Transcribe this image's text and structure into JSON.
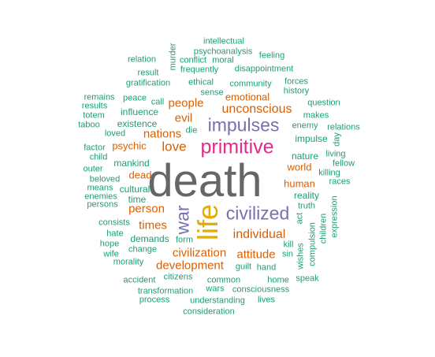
{
  "colors": {
    "teal": "#1b9e77",
    "orange": "#d95f02",
    "purple": "#7570b3",
    "magenta": "#e7298a",
    "gold": "#e6ab02",
    "gray": "#666666"
  },
  "words": [
    {
      "text": "death",
      "color": "gray"
    },
    {
      "text": "life",
      "color": "gold"
    },
    {
      "text": "primitive",
      "color": "magenta"
    },
    {
      "text": "impulses",
      "color": "purple"
    },
    {
      "text": "civilized",
      "color": "purple"
    },
    {
      "text": "war",
      "color": "purple"
    },
    {
      "text": "individual",
      "color": "orange"
    },
    {
      "text": "unconscious",
      "color": "orange"
    },
    {
      "text": "love",
      "color": "orange"
    },
    {
      "text": "nations",
      "color": "orange"
    },
    {
      "text": "people",
      "color": "orange"
    },
    {
      "text": "evil",
      "color": "orange"
    },
    {
      "text": "emotional",
      "color": "orange"
    },
    {
      "text": "person",
      "color": "orange"
    },
    {
      "text": "times",
      "color": "orange"
    },
    {
      "text": "civilization",
      "color": "orange"
    },
    {
      "text": "development",
      "color": "orange"
    },
    {
      "text": "attitude",
      "color": "orange"
    },
    {
      "text": "psychic",
      "color": "orange"
    },
    {
      "text": "dead",
      "color": "orange"
    },
    {
      "text": "world",
      "color": "orange"
    },
    {
      "text": "human",
      "color": "orange"
    },
    {
      "text": "intellectual",
      "color": "teal"
    },
    {
      "text": "murder",
      "color": "teal"
    },
    {
      "text": "psychoanalysis",
      "color": "teal"
    },
    {
      "text": "relation",
      "color": "teal"
    },
    {
      "text": "conflict",
      "color": "teal"
    },
    {
      "text": "moral",
      "color": "teal"
    },
    {
      "text": "feeling",
      "color": "teal"
    },
    {
      "text": "result",
      "color": "teal"
    },
    {
      "text": "frequently",
      "color": "teal"
    },
    {
      "text": "disappointment",
      "color": "teal"
    },
    {
      "text": "gratification",
      "color": "teal"
    },
    {
      "text": "ethical",
      "color": "teal"
    },
    {
      "text": "community",
      "color": "teal"
    },
    {
      "text": "forces",
      "color": "teal"
    },
    {
      "text": "history",
      "color": "teal"
    },
    {
      "text": "remains",
      "color": "teal"
    },
    {
      "text": "peace",
      "color": "teal"
    },
    {
      "text": "call",
      "color": "teal"
    },
    {
      "text": "sense",
      "color": "teal"
    },
    {
      "text": "results",
      "color": "teal"
    },
    {
      "text": "question",
      "color": "teal"
    },
    {
      "text": "totem",
      "color": "teal"
    },
    {
      "text": "influence",
      "color": "teal"
    },
    {
      "text": "makes",
      "color": "teal"
    },
    {
      "text": "taboo",
      "color": "teal"
    },
    {
      "text": "existence",
      "color": "teal"
    },
    {
      "text": "die",
      "color": "teal"
    },
    {
      "text": "enemy",
      "color": "teal"
    },
    {
      "text": "relations",
      "color": "teal"
    },
    {
      "text": "loved",
      "color": "teal"
    },
    {
      "text": "impulse",
      "color": "teal"
    },
    {
      "text": "day",
      "color": "teal"
    },
    {
      "text": "factor",
      "color": "teal"
    },
    {
      "text": "living",
      "color": "teal"
    },
    {
      "text": "nature",
      "color": "teal"
    },
    {
      "text": "child",
      "color": "teal"
    },
    {
      "text": "fellow",
      "color": "teal"
    },
    {
      "text": "mankind",
      "color": "teal"
    },
    {
      "text": "outer",
      "color": "teal"
    },
    {
      "text": "killing",
      "color": "teal"
    },
    {
      "text": "beloved",
      "color": "teal"
    },
    {
      "text": "races",
      "color": "teal"
    },
    {
      "text": "means",
      "color": "teal"
    },
    {
      "text": "cultural",
      "color": "teal"
    },
    {
      "text": "enemies",
      "color": "teal"
    },
    {
      "text": "reality",
      "color": "teal"
    },
    {
      "text": "time",
      "color": "teal"
    },
    {
      "text": "persons",
      "color": "teal"
    },
    {
      "text": "truth",
      "color": "teal"
    },
    {
      "text": "act",
      "color": "teal"
    },
    {
      "text": "expression",
      "color": "teal"
    },
    {
      "text": "children",
      "color": "teal"
    },
    {
      "text": "consists",
      "color": "teal"
    },
    {
      "text": "kill",
      "color": "teal"
    },
    {
      "text": "compulsion",
      "color": "teal"
    },
    {
      "text": "hate",
      "color": "teal"
    },
    {
      "text": "demands",
      "color": "teal"
    },
    {
      "text": "form",
      "color": "teal"
    },
    {
      "text": "sin",
      "color": "teal"
    },
    {
      "text": "hope",
      "color": "teal"
    },
    {
      "text": "change",
      "color": "teal"
    },
    {
      "text": "wishes",
      "color": "teal"
    },
    {
      "text": "wife",
      "color": "teal"
    },
    {
      "text": "guilt",
      "color": "teal"
    },
    {
      "text": "hand",
      "color": "teal"
    },
    {
      "text": "morality",
      "color": "teal"
    },
    {
      "text": "accident",
      "color": "teal"
    },
    {
      "text": "citizens",
      "color": "teal"
    },
    {
      "text": "common",
      "color": "teal"
    },
    {
      "text": "home",
      "color": "teal"
    },
    {
      "text": "speak",
      "color": "teal"
    },
    {
      "text": "wars",
      "color": "teal"
    },
    {
      "text": "consciousness",
      "color": "teal"
    },
    {
      "text": "transformation",
      "color": "teal"
    },
    {
      "text": "process",
      "color": "teal"
    },
    {
      "text": "understanding",
      "color": "teal"
    },
    {
      "text": "lives",
      "color": "teal"
    },
    {
      "text": "consideration",
      "color": "teal"
    }
  ]
}
